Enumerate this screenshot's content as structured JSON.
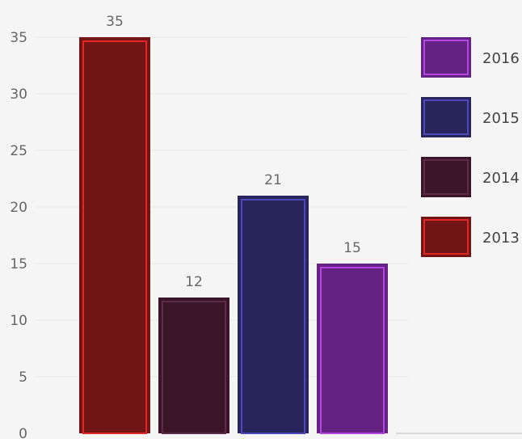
{
  "chart_data": {
    "type": "bar",
    "categories": [
      "2013",
      "2014",
      "2015",
      "2016"
    ],
    "values": [
      35,
      12,
      21,
      15
    ],
    "series": [
      {
        "name": "2013",
        "value": 35,
        "fill": "#721515",
        "stroke": "#e02828"
      },
      {
        "name": "2014",
        "value": 12,
        "fill": "#3b1629",
        "stroke": "#5e2b4a"
      },
      {
        "name": "2015",
        "value": 21,
        "fill": "#28245c",
        "stroke": "#4f48b8"
      },
      {
        "name": "2016",
        "value": 15,
        "fill": "#642383",
        "stroke": "#b545e0"
      }
    ],
    "legend_order": [
      "2016",
      "2015",
      "2014",
      "2013"
    ],
    "y_ticks": [
      0,
      5,
      10,
      15,
      20,
      25,
      30,
      35
    ],
    "ylim": [
      0,
      35
    ],
    "grid": true,
    "legend_position": "right",
    "title": "",
    "xlabel": "",
    "ylabel": ""
  }
}
